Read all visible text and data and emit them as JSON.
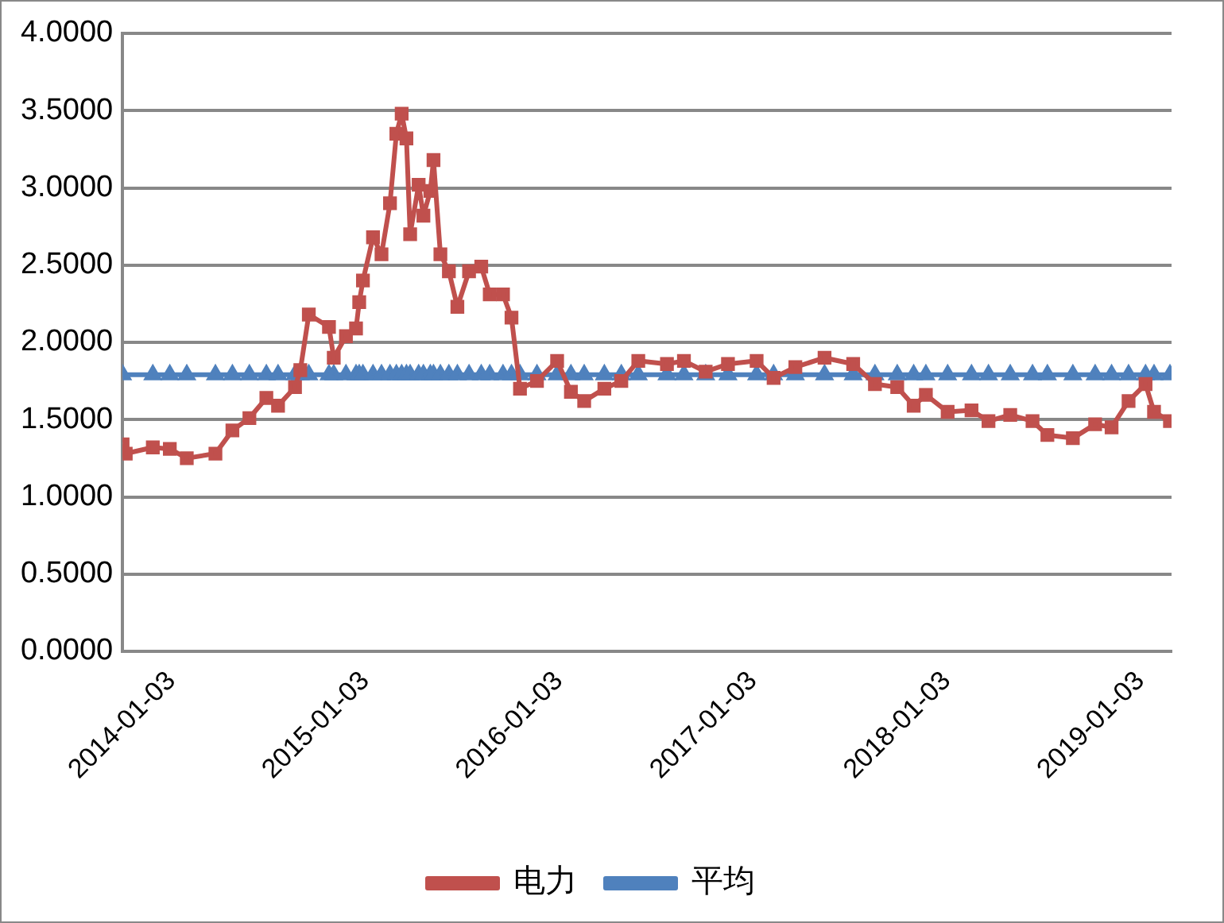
{
  "chart_data": {
    "type": "line",
    "x": [
      "2014-01-03",
      "2014-01-09",
      "2014-03-01",
      "2014-04-02",
      "2014-05-04",
      "2014-06-27",
      "2014-07-29",
      "2014-08-30",
      "2014-10-01",
      "2014-10-23",
      "2014-11-24",
      "2014-12-04",
      "2014-12-20",
      "2015-01-27",
      "2015-02-05",
      "2015-02-28",
      "2015-03-19",
      "2015-03-25",
      "2015-04-01",
      "2015-04-20",
      "2015-05-06",
      "2015-05-22",
      "2015-06-03",
      "2015-06-13",
      "2015-06-22",
      "2015-06-29",
      "2015-07-15",
      "2015-07-24",
      "2015-08-06",
      "2015-08-12",
      "2015-08-25",
      "2015-09-10",
      "2015-09-26",
      "2015-10-18",
      "2015-11-10",
      "2015-11-26",
      "2015-12-21",
      "2016-01-06",
      "2016-01-22",
      "2016-02-23",
      "2016-04-01",
      "2016-04-27",
      "2016-05-22",
      "2016-06-29",
      "2016-07-31",
      "2016-09-01",
      "2016-10-25",
      "2016-11-26",
      "2017-01-06",
      "2017-02-17",
      "2017-04-12",
      "2017-05-14",
      "2017-06-24",
      "2017-08-18",
      "2017-10-11",
      "2017-11-21",
      "2018-01-02",
      "2018-02-02",
      "2018-02-25",
      "2018-04-07",
      "2018-05-22",
      "2018-06-23",
      "2018-08-03",
      "2018-09-14",
      "2018-10-12",
      "2018-11-29",
      "2019-01-10",
      "2019-02-10",
      "2019-03-14",
      "2019-04-15",
      "2019-05-01",
      "2019-05-31"
    ],
    "series": [
      {
        "name": "电力",
        "color": "#c0504d",
        "marker": "square",
        "values": [
          1.34,
          1.28,
          1.32,
          1.31,
          1.25,
          1.28,
          1.43,
          1.51,
          1.64,
          1.59,
          1.71,
          1.82,
          2.18,
          2.1,
          1.9,
          2.04,
          2.09,
          2.26,
          2.4,
          2.68,
          2.57,
          2.9,
          3.35,
          3.48,
          3.32,
          2.7,
          3.02,
          2.82,
          2.98,
          3.18,
          2.57,
          2.46,
          2.23,
          2.46,
          2.49,
          2.31,
          2.31,
          2.16,
          1.7,
          1.75,
          1.88,
          1.68,
          1.62,
          1.7,
          1.75,
          1.88,
          1.86,
          1.88,
          1.81,
          1.86,
          1.88,
          1.77,
          1.84,
          1.9,
          1.86,
          1.73,
          1.71,
          1.59,
          1.66,
          1.55,
          1.56,
          1.49,
          1.53,
          1.49,
          1.4,
          1.38,
          1.47,
          1.45,
          1.62,
          1.73,
          1.55,
          1.49
        ]
      },
      {
        "name": "平均",
        "color": "#4f81bd",
        "marker": "triangle",
        "x": [
          "2014-01-03",
          "2014-03-01",
          "2014-04-02",
          "2014-05-04",
          "2014-06-27",
          "2014-07-29",
          "2014-08-30",
          "2014-10-01",
          "2014-10-23",
          "2014-11-24",
          "2014-12-04",
          "2014-12-20",
          "2015-01-27",
          "2015-02-05",
          "2015-02-28",
          "2015-03-19",
          "2015-03-25",
          "2015-04-01",
          "2015-04-20",
          "2015-05-06",
          "2015-05-22",
          "2015-06-03",
          "2015-06-13",
          "2015-06-22",
          "2015-06-29",
          "2015-07-15",
          "2015-07-24",
          "2015-08-06",
          "2015-08-12",
          "2015-08-25",
          "2015-09-10",
          "2015-09-26",
          "2015-10-18",
          "2015-11-10",
          "2015-11-26",
          "2015-12-21",
          "2016-01-06",
          "2016-01-22",
          "2016-02-23",
          "2016-04-01",
          "2016-04-27",
          "2016-05-22",
          "2016-06-29",
          "2016-07-31",
          "2016-09-01",
          "2016-10-25",
          "2016-11-26",
          "2017-01-06",
          "2017-02-17",
          "2017-04-12",
          "2017-05-14",
          "2017-06-24",
          "2017-08-18",
          "2017-10-11",
          "2017-11-21",
          "2018-01-02",
          "2018-02-02",
          "2018-02-25",
          "2018-04-07",
          "2018-05-22",
          "2018-06-23",
          "2018-08-03",
          "2018-09-14",
          "2018-10-12",
          "2018-11-29",
          "2019-01-10",
          "2019-02-10",
          "2019-03-14",
          "2019-04-15",
          "2019-05-01",
          "2019-05-31"
        ],
        "values": [
          1.79,
          1.79,
          1.79,
          1.79,
          1.79,
          1.79,
          1.79,
          1.79,
          1.79,
          1.79,
          1.79,
          1.79,
          1.79,
          1.79,
          1.79,
          1.79,
          1.79,
          1.79,
          1.79,
          1.79,
          1.79,
          1.79,
          1.79,
          1.79,
          1.79,
          1.79,
          1.79,
          1.79,
          1.79,
          1.79,
          1.79,
          1.79,
          1.79,
          1.79,
          1.79,
          1.79,
          1.79,
          1.79,
          1.79,
          1.79,
          1.79,
          1.79,
          1.79,
          1.79,
          1.79,
          1.79,
          1.79,
          1.79,
          1.79,
          1.79,
          1.79,
          1.79,
          1.79,
          1.79,
          1.79,
          1.79,
          1.79,
          1.79,
          1.79,
          1.79,
          1.79,
          1.79,
          1.79,
          1.79,
          1.79,
          1.79,
          1.79,
          1.79,
          1.79,
          1.79,
          1.79
        ]
      }
    ],
    "xlim": [
      "2014-01-03",
      "2019-06-03"
    ],
    "xticks": [
      "2014-01-03",
      "2015-01-03",
      "2016-01-03",
      "2017-01-03",
      "2018-01-03",
      "2019-01-03"
    ],
    "ylim": [
      0,
      4
    ],
    "yticks": [
      {
        "value": 0,
        "label": "0.0000"
      },
      {
        "value": 0.5,
        "label": "0.5000"
      },
      {
        "value": 1,
        "label": "1.0000"
      },
      {
        "value": 1.5,
        "label": "1.5000"
      },
      {
        "value": 2,
        "label": "2.0000"
      },
      {
        "value": 2.5,
        "label": "2.5000"
      },
      {
        "value": 3,
        "label": "3.0000"
      },
      {
        "value": 3.5,
        "label": "3.5000"
      },
      {
        "value": 4,
        "label": "4.0000"
      }
    ],
    "grid": "y",
    "legend": "bottom"
  }
}
